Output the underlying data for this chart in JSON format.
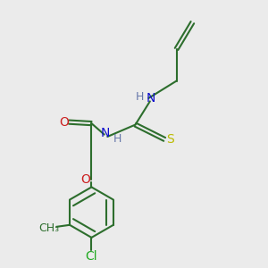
{
  "bg_color": "#ebebeb",
  "colors": {
    "N": "#1010cc",
    "O": "#cc2020",
    "S": "#bbbb00",
    "Cl": "#20aa20",
    "C": "#2d6e2d",
    "H": "#6677aa"
  },
  "lw": 1.5,
  "fontsize": 10
}
